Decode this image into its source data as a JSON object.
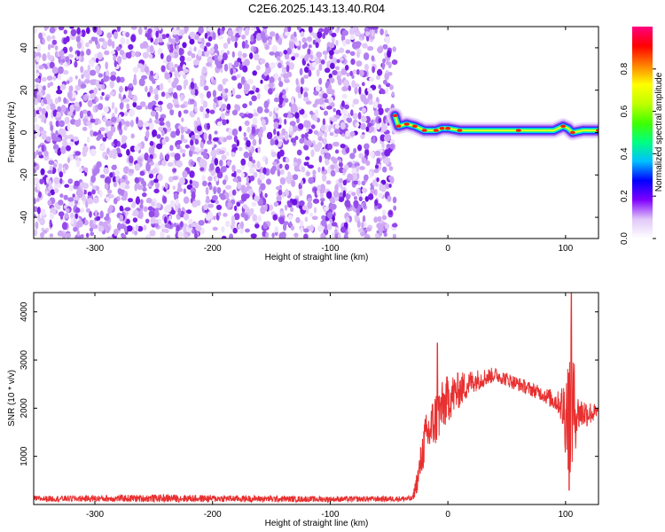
{
  "title": "C2E6.2025.143.13.40.R04",
  "colors": {
    "noise": "#7a1fe8",
    "signal_core": "#e01818",
    "snr_line": "#e83030",
    "frame": "#000000"
  },
  "chart_data": [
    {
      "type": "heatmap",
      "xlabel": "Height of straight line (km)",
      "ylabel": "Frequency (Hz)",
      "xlim": [
        -352,
        128
      ],
      "ylim": [
        -50,
        50
      ],
      "x_ticks": [
        -300,
        -200,
        -100,
        0,
        100
      ],
      "y_ticks": [
        -40,
        -20,
        0,
        20,
        40
      ],
      "x_tick_labels": [
        "-300",
        "-200",
        "-100",
        "0",
        "100"
      ],
      "y_tick_labels": [
        "-40",
        "-20",
        "0",
        "20",
        "40"
      ],
      "grid": false,
      "noise_region_x": [
        -352,
        -45
      ],
      "signal_track": [
        {
          "x": -45,
          "y": 8
        },
        {
          "x": -42,
          "y": 3
        },
        {
          "x": -35,
          "y": 4
        },
        {
          "x": -28,
          "y": 3
        },
        {
          "x": -20,
          "y": 1
        },
        {
          "x": -10,
          "y": 1
        },
        {
          "x": -5,
          "y": 2
        },
        {
          "x": 0,
          "y": 2
        },
        {
          "x": 10,
          "y": 1
        },
        {
          "x": 30,
          "y": 1
        },
        {
          "x": 60,
          "y": 1
        },
        {
          "x": 90,
          "y": 1
        },
        {
          "x": 98,
          "y": 3
        },
        {
          "x": 102,
          "y": 2
        },
        {
          "x": 106,
          "y": 0
        },
        {
          "x": 115,
          "y": 1
        },
        {
          "x": 128,
          "y": 1
        }
      ],
      "colorbar": {
        "label": "Normalized spectral amplitude",
        "range": [
          0,
          1
        ],
        "ticks": [
          0.0,
          0.2,
          0.4,
          0.6,
          0.8
        ],
        "tick_labels": [
          "0.0",
          "0.2",
          "0.4",
          "0.6",
          "0.8"
        ],
        "stops": [
          "#ffffff",
          "#e0c8f8",
          "#8000ff",
          "#0000ff",
          "#00c0ff",
          "#00ff80",
          "#40ff00",
          "#c0ff00",
          "#ffff00",
          "#ff8000",
          "#ff0000",
          "#ff0080"
        ]
      }
    },
    {
      "type": "line",
      "xlabel": "Height of straight line (km)",
      "ylabel": "SNR (10 * v/v)",
      "xlim": [
        -352,
        128
      ],
      "ylim": [
        0,
        4400
      ],
      "x_ticks": [
        -300,
        -200,
        -100,
        0,
        100
      ],
      "y_ticks": [
        1000,
        2000,
        3000,
        4000
      ],
      "x_tick_labels": [
        "-300",
        "-200",
        "-100",
        "0",
        "100"
      ],
      "y_tick_labels": [
        "1000",
        "2000",
        "3000",
        "4000"
      ],
      "grid": false,
      "series": [
        {
          "color": "#e83030",
          "envelope": [
            {
              "x": -352,
              "mean": 120,
              "spread": 60
            },
            {
              "x": -240,
              "mean": 130,
              "spread": 80
            },
            {
              "x": -100,
              "mean": 110,
              "spread": 60
            },
            {
              "x": -30,
              "mean": 120,
              "spread": 60
            },
            {
              "x": -25,
              "mean": 600,
              "spread": 300
            },
            {
              "x": -20,
              "mean": 1300,
              "spread": 500
            },
            {
              "x": -10,
              "mean": 1800,
              "spread": 600
            },
            {
              "x": 0,
              "mean": 2200,
              "spread": 500
            },
            {
              "x": 20,
              "mean": 2550,
              "spread": 250
            },
            {
              "x": 40,
              "mean": 2700,
              "spread": 150
            },
            {
              "x": 60,
              "mean": 2500,
              "spread": 150
            },
            {
              "x": 80,
              "mean": 2300,
              "spread": 150
            },
            {
              "x": 95,
              "mean": 2100,
              "spread": 250
            },
            {
              "x": 100,
              "mean": 1900,
              "spread": 900
            },
            {
              "x": 105,
              "mean": 2000,
              "spread": 1700
            },
            {
              "x": 110,
              "mean": 1900,
              "spread": 400
            },
            {
              "x": 128,
              "mean": 1900,
              "spread": 150
            }
          ],
          "peaks": [
            {
              "x": -9,
              "y": 3350
            },
            {
              "x": 105,
              "y": 4400
            },
            {
              "x": 103,
              "y": 300
            }
          ]
        }
      ]
    }
  ]
}
